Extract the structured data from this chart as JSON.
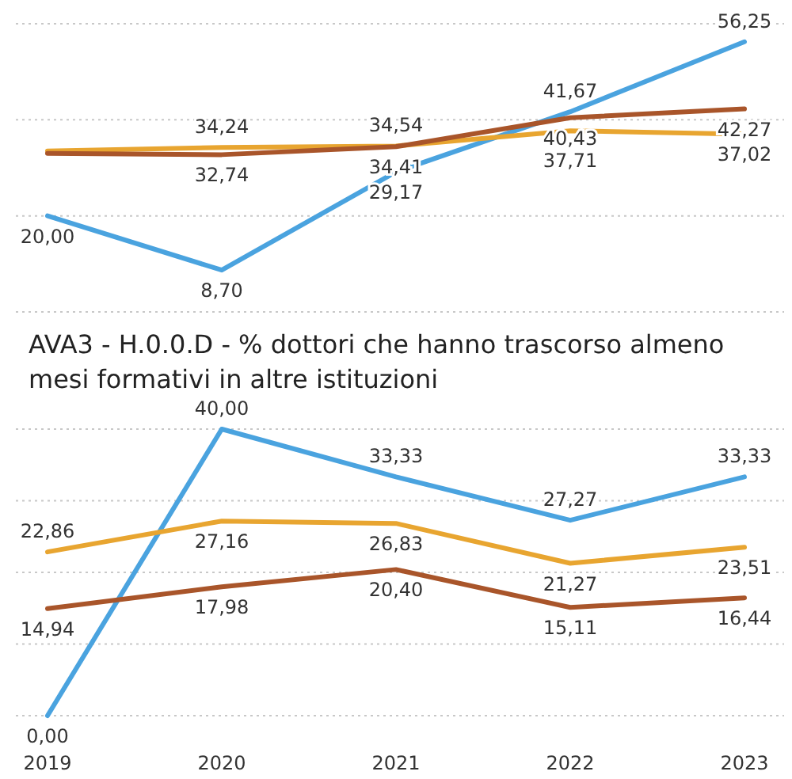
{
  "chart_data": [
    {
      "type": "line",
      "categories": [
        null,
        null,
        null,
        null,
        null
      ],
      "ylim": [
        0,
        60
      ],
      "yticks": [
        {
          "value": 0,
          "label": null
        },
        {
          "value": 20,
          "label": null
        },
        {
          "value": 40,
          "label": null
        },
        {
          "value": 60,
          "label": null
        }
      ],
      "grid": "y",
      "tick_labels": false,
      "marker": "none",
      "line_style": "solid",
      "series": [
        {
          "color": "#4aa3df",
          "values": [
            20.0,
            8.7,
            29.17,
            41.67,
            56.25
          ],
          "value_labels": [
            "20,00",
            "8,70",
            "29,17",
            "41,67",
            "56,25"
          ]
        },
        {
          "color": "#e8a530",
          "values": [
            33.5,
            34.24,
            34.54,
            37.71,
            37.02
          ],
          "value_labels": [
            null,
            "34,24",
            "34,54",
            "37,71",
            "37,02"
          ]
        },
        {
          "color": "#a9552a",
          "values": [
            33.0,
            32.74,
            34.41,
            40.43,
            42.27
          ],
          "value_labels": [
            null,
            "32,74",
            "34,41",
            "40,43",
            "42,27"
          ]
        }
      ]
    },
    {
      "type": "line",
      "title": "AVA3 - H.0.0.D - % dottori che hanno trascorso almeno\nmesi formativi in altre istituzioni",
      "categories": [
        "2019",
        "2020",
        "2021",
        "2022",
        "2023"
      ],
      "ylim": [
        0,
        40
      ],
      "yticks": [
        {
          "value": 0,
          "label": null
        },
        {
          "value": 10,
          "label": null
        },
        {
          "value": 20,
          "label": null
        },
        {
          "value": 30,
          "label": null
        },
        {
          "value": 40,
          "label": null
        }
      ],
      "grid": "y",
      "tick_labels": "x",
      "marker": "none",
      "line_style": "solid",
      "series": [
        {
          "color": "#4aa3df",
          "values": [
            0.0,
            40.0,
            33.33,
            27.27,
            33.33
          ],
          "value_labels": [
            "0,00",
            "40,00",
            "33,33",
            "27,27",
            "33,33"
          ]
        },
        {
          "color": "#e8a530",
          "values": [
            22.86,
            27.16,
            26.83,
            21.27,
            23.51
          ],
          "value_labels": [
            "22,86",
            "27,16",
            "26,83",
            "21,27",
            "23,51"
          ]
        },
        {
          "color": "#a9552a",
          "values": [
            14.94,
            17.98,
            20.4,
            15.11,
            16.44
          ],
          "value_labels": [
            "14,94",
            "17,98",
            "20,40",
            "15,11",
            "16,44"
          ]
        }
      ]
    }
  ]
}
